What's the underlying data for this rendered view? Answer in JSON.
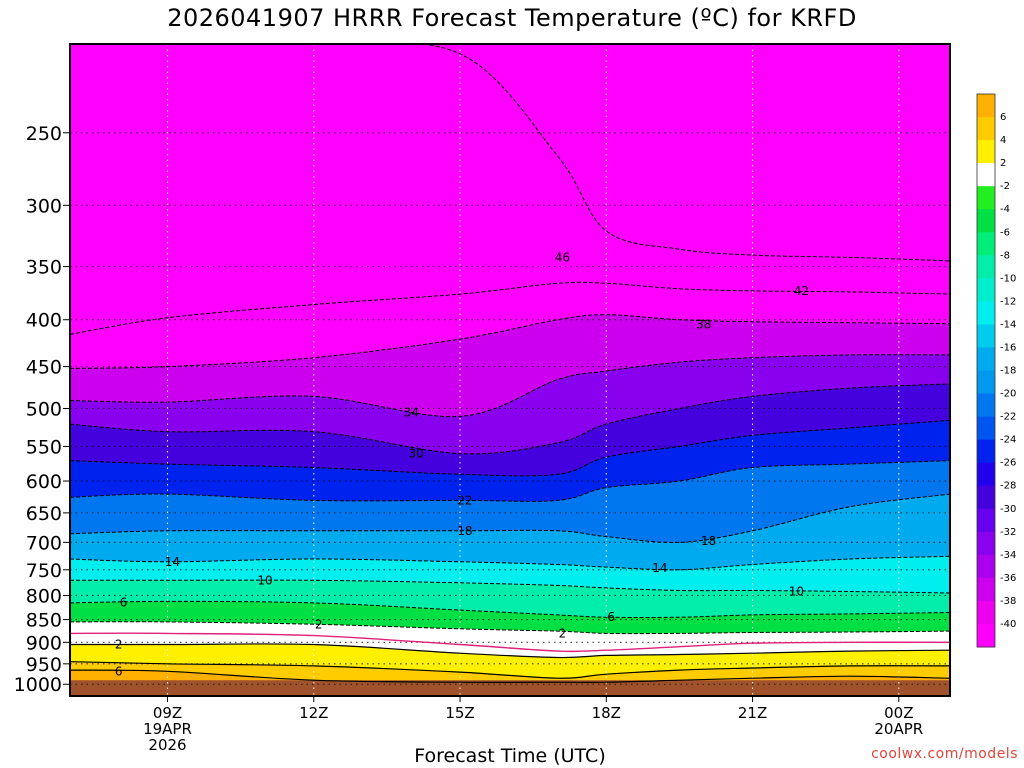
{
  "header": {
    "title": "2026041907 HRRR Forecast Temperature (ºC) for KRFD"
  },
  "footer": {
    "xlabel": "Forecast Time (UTC)",
    "credit": "coolwx.com/models"
  },
  "chart_data": {
    "type": "contour",
    "title": "2026041907 HRRR Forecast Temperature (ºC) for KRFD",
    "xlabel": "Forecast Time (UTC)",
    "ylabel": "",
    "y_axis": {
      "scale": "log",
      "reversed": true,
      "range": [
        1030,
        200
      ],
      "ticks": [
        250,
        300,
        350,
        400,
        450,
        500,
        550,
        600,
        650,
        700,
        750,
        800,
        850,
        900,
        950,
        1000
      ]
    },
    "x_axis": {
      "range": [
        7.0,
        25.05
      ],
      "ticks": [
        {
          "x": 9,
          "lines": [
            "09Z",
            "19APR",
            "2026"
          ]
        },
        {
          "x": 12,
          "lines": [
            "12Z"
          ]
        },
        {
          "x": 15,
          "lines": [
            "15Z"
          ]
        },
        {
          "x": 18,
          "lines": [
            "18Z"
          ]
        },
        {
          "x": 21,
          "lines": [
            "21Z"
          ]
        },
        {
          "x": 24,
          "lines": [
            "00Z",
            "20APR"
          ]
        }
      ]
    },
    "grid": true,
    "contour_interval_c": 2,
    "surface_pressure_hpa": 990,
    "colorbar": {
      "position": "right",
      "ticks": [
        6,
        4,
        2,
        -2,
        -4,
        -6,
        -8,
        -10,
        -12,
        -14,
        -16,
        -18,
        -20,
        -22,
        -24,
        -26,
        -28,
        -30,
        -32,
        -34,
        -36,
        -38,
        -40
      ],
      "bands": [
        {
          "min": 6,
          "max": 8,
          "color": "#ffb000"
        },
        {
          "min": 4,
          "max": 6,
          "color": "#ffcc00"
        },
        {
          "min": 2,
          "max": 4,
          "color": "#fff000"
        },
        {
          "min": -2,
          "max": 2,
          "color": "#ffffff"
        },
        {
          "min": -4,
          "max": -2,
          "color": "#22ee22"
        },
        {
          "min": -6,
          "max": -4,
          "color": "#00e044"
        },
        {
          "min": -8,
          "max": -6,
          "color": "#00ee77"
        },
        {
          "min": -10,
          "max": -8,
          "color": "#00eeaa"
        },
        {
          "min": -12,
          "max": -10,
          "color": "#00eecc"
        },
        {
          "min": -14,
          "max": -12,
          "color": "#00eeee"
        },
        {
          "min": -16,
          "max": -14,
          "color": "#00ccee"
        },
        {
          "min": -18,
          "max": -16,
          "color": "#00aaee"
        },
        {
          "min": -20,
          "max": -18,
          "color": "#0099ee"
        },
        {
          "min": -22,
          "max": -20,
          "color": "#0077ee"
        },
        {
          "min": -24,
          "max": -22,
          "color": "#0055ee"
        },
        {
          "min": -26,
          "max": -24,
          "color": "#0022ee"
        },
        {
          "min": -28,
          "max": -26,
          "color": "#2200ee"
        },
        {
          "min": -30,
          "max": -28,
          "color": "#4400dd"
        },
        {
          "min": -32,
          "max": -30,
          "color": "#6600ee"
        },
        {
          "min": -34,
          "max": -32,
          "color": "#8800ee"
        },
        {
          "min": -36,
          "max": -34,
          "color": "#aa00ee"
        },
        {
          "min": -38,
          "max": -36,
          "color": "#cc00ee"
        },
        {
          "min": -40,
          "max": -38,
          "color": "#ee00ee"
        },
        {
          "min": -60,
          "max": -40,
          "color": "#ff00ff"
        }
      ]
    },
    "temperature_profiles": {
      "times": [
        7.0,
        9.0,
        12.0,
        15.0,
        17.0,
        18.0,
        19.5,
        21.0,
        23.0,
        25.05
      ],
      "levels": [
        {
          "t": -46,
          "p": [
            200,
            200,
            200,
            205,
            265,
            320,
            335,
            340,
            342,
            345
          ]
        },
        {
          "t": -42,
          "p": [
            415,
            398,
            385,
            375,
            365,
            365,
            370,
            372,
            373,
            375
          ]
        },
        {
          "t": -38,
          "p": [
            452,
            450,
            440,
            420,
            400,
            395,
            400,
            402,
            403,
            404
          ]
        },
        {
          "t": -34,
          "p": [
            490,
            492,
            485,
            510,
            465,
            455,
            445,
            440,
            437,
            437
          ]
        },
        {
          "t": -30,
          "p": [
            520,
            530,
            530,
            560,
            545,
            520,
            500,
            485,
            475,
            470
          ]
        },
        {
          "t": -26,
          "p": [
            570,
            575,
            580,
            590,
            590,
            565,
            550,
            535,
            525,
            515
          ]
        },
        {
          "t": -22,
          "p": [
            625,
            620,
            630,
            630,
            630,
            610,
            600,
            580,
            575,
            570
          ]
        },
        {
          "t": -18,
          "p": [
            685,
            680,
            680,
            680,
            680,
            690,
            700,
            680,
            640,
            620
          ]
        },
        {
          "t": -14,
          "p": [
            730,
            735,
            730,
            735,
            740,
            745,
            750,
            740,
            730,
            725
          ]
        },
        {
          "t": -10,
          "p": [
            770,
            770,
            770,
            775,
            780,
            785,
            790,
            790,
            792,
            795
          ]
        },
        {
          "t": -6,
          "p": [
            815,
            812,
            815,
            830,
            840,
            845,
            845,
            840,
            838,
            835
          ]
        },
        {
          "t": -2,
          "p": [
            855,
            855,
            860,
            870,
            875,
            880,
            880,
            878,
            877,
            875
          ]
        },
        {
          "t": 0,
          "p": [
            880,
            880,
            885,
            905,
            920,
            918,
            910,
            902,
            900,
            900
          ]
        },
        {
          "t": 2,
          "p": [
            905,
            905,
            905,
            925,
            935,
            930,
            928,
            925,
            920,
            918
          ]
        },
        {
          "t": 4,
          "p": [
            945,
            950,
            955,
            970,
            985,
            975,
            965,
            960,
            955,
            955
          ]
        },
        {
          "t": 6,
          "p": [
            965,
            968,
            990,
            995,
            995,
            995,
            990,
            985,
            980,
            985
          ]
        }
      ]
    },
    "contour_labels": [
      {
        "text": "46",
        "x": 17.1,
        "p": 342
      },
      {
        "text": "42",
        "x": 22.0,
        "p": 372
      },
      {
        "text": "38",
        "x": 20.0,
        "p": 405
      },
      {
        "text": "34",
        "x": 14.0,
        "p": 505
      },
      {
        "text": "30",
        "x": 14.1,
        "p": 560
      },
      {
        "text": "22",
        "x": 15.1,
        "p": 630
      },
      {
        "text": "18",
        "x": 15.1,
        "p": 680
      },
      {
        "text": "18",
        "x": 20.1,
        "p": 698
      },
      {
        "text": "14",
        "x": 9.1,
        "p": 735
      },
      {
        "text": "14",
        "x": 19.1,
        "p": 747
      },
      {
        "text": "10",
        "x": 11.0,
        "p": 770
      },
      {
        "text": "10",
        "x": 21.9,
        "p": 792
      },
      {
        "text": "6",
        "x": 8.1,
        "p": 814
      },
      {
        "text": "6",
        "x": 18.1,
        "p": 845
      },
      {
        "text": "2",
        "x": 12.1,
        "p": 861
      },
      {
        "text": "2",
        "x": 17.1,
        "p": 880
      },
      {
        "text": "2",
        "x": 8.0,
        "p": 905
      },
      {
        "text": "6",
        "x": 8.0,
        "p": 968
      }
    ]
  }
}
